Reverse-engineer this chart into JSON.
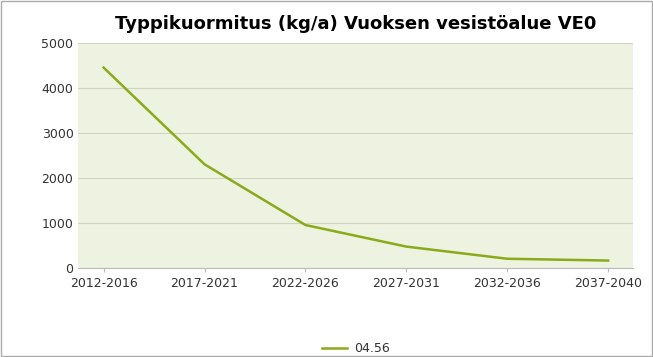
{
  "title": "Typpikuormitus (kg/a) Vuoksen vesistöalue VE0",
  "categories": [
    "2012-2016",
    "2017-2021",
    "2022-2026",
    "2027-2031",
    "2032-2036",
    "2037-2040"
  ],
  "series": [
    {
      "label": "04.56",
      "values": [
        4450,
        2300,
        950,
        470,
        200,
        160
      ],
      "color": "#8aaa1a",
      "linewidth": 1.8
    }
  ],
  "ylim": [
    0,
    5000
  ],
  "yticks": [
    0,
    1000,
    2000,
    3000,
    4000,
    5000
  ],
  "plot_bg_color": "#eef2e0",
  "outer_bg_color": "#ffffff",
  "border_color": "#aaaaaa",
  "grid_color": "#d0d4c0",
  "title_fontsize": 13,
  "tick_fontsize": 9,
  "legend_fontsize": 9
}
